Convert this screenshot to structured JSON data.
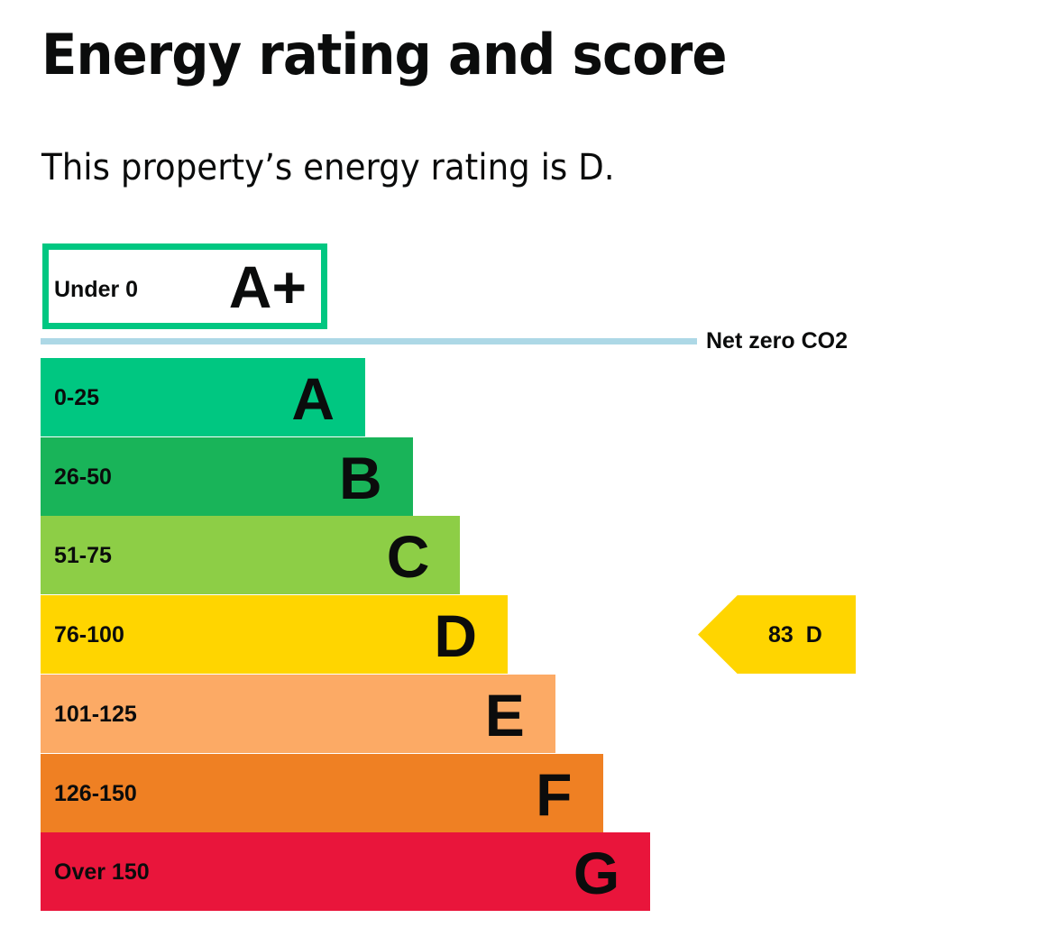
{
  "title": "Energy rating and score",
  "subtitle": "This property’s energy rating is D.",
  "chart_data": {
    "type": "bar",
    "title": "Energy rating and score",
    "top_band": {
      "range": "Under 0",
      "letter": "A+",
      "color": "#00c781"
    },
    "net_zero": {
      "label": "Net zero CO2",
      "color": "#add8e6"
    },
    "bands": [
      {
        "range": "0-25",
        "letter": "A",
        "color": "#00c781"
      },
      {
        "range": "26-50",
        "letter": "B",
        "color": "#19b459"
      },
      {
        "range": "51-75",
        "letter": "C",
        "color": "#8dce46"
      },
      {
        "range": "76-100",
        "letter": "D",
        "color": "#ffd500"
      },
      {
        "range": "101-125",
        "letter": "E",
        "color": "#fcaa65"
      },
      {
        "range": "126-150",
        "letter": "F",
        "color": "#ef8023"
      },
      {
        "range": "Over 150",
        "letter": "G",
        "color": "#e9153b"
      }
    ],
    "current": {
      "score": 83,
      "letter": "D",
      "label": "83  D",
      "color": "#ffd500"
    }
  }
}
